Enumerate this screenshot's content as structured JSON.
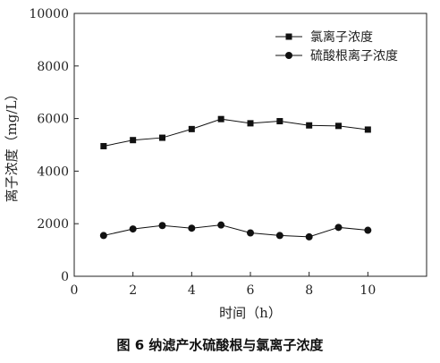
{
  "caption": "图 6  纳滤产水硫酸根与氯离子浓度",
  "chart_data": {
    "type": "line",
    "xlabel": "时间（h）",
    "ylabel": "离子浓度（mg/L）",
    "xlim": [
      0,
      12
    ],
    "ylim": [
      0,
      10000
    ],
    "xticks": [
      0,
      2,
      4,
      6,
      8,
      10
    ],
    "yticks": [
      0,
      2000,
      4000,
      6000,
      8000,
      10000
    ],
    "grid": false,
    "legend_position": "top-right",
    "x": [
      1,
      2,
      3,
      4,
      5,
      6,
      7,
      8,
      9,
      10
    ],
    "series": [
      {
        "name": "氯离子浓度",
        "marker": "square",
        "values": [
          4950,
          5180,
          5270,
          5600,
          5980,
          5820,
          5900,
          5740,
          5720,
          5580
        ]
      },
      {
        "name": "硫酸根离子浓度",
        "marker": "circle",
        "values": [
          1550,
          1800,
          1930,
          1830,
          1950,
          1650,
          1550,
          1500,
          1860,
          1750
        ]
      }
    ]
  }
}
